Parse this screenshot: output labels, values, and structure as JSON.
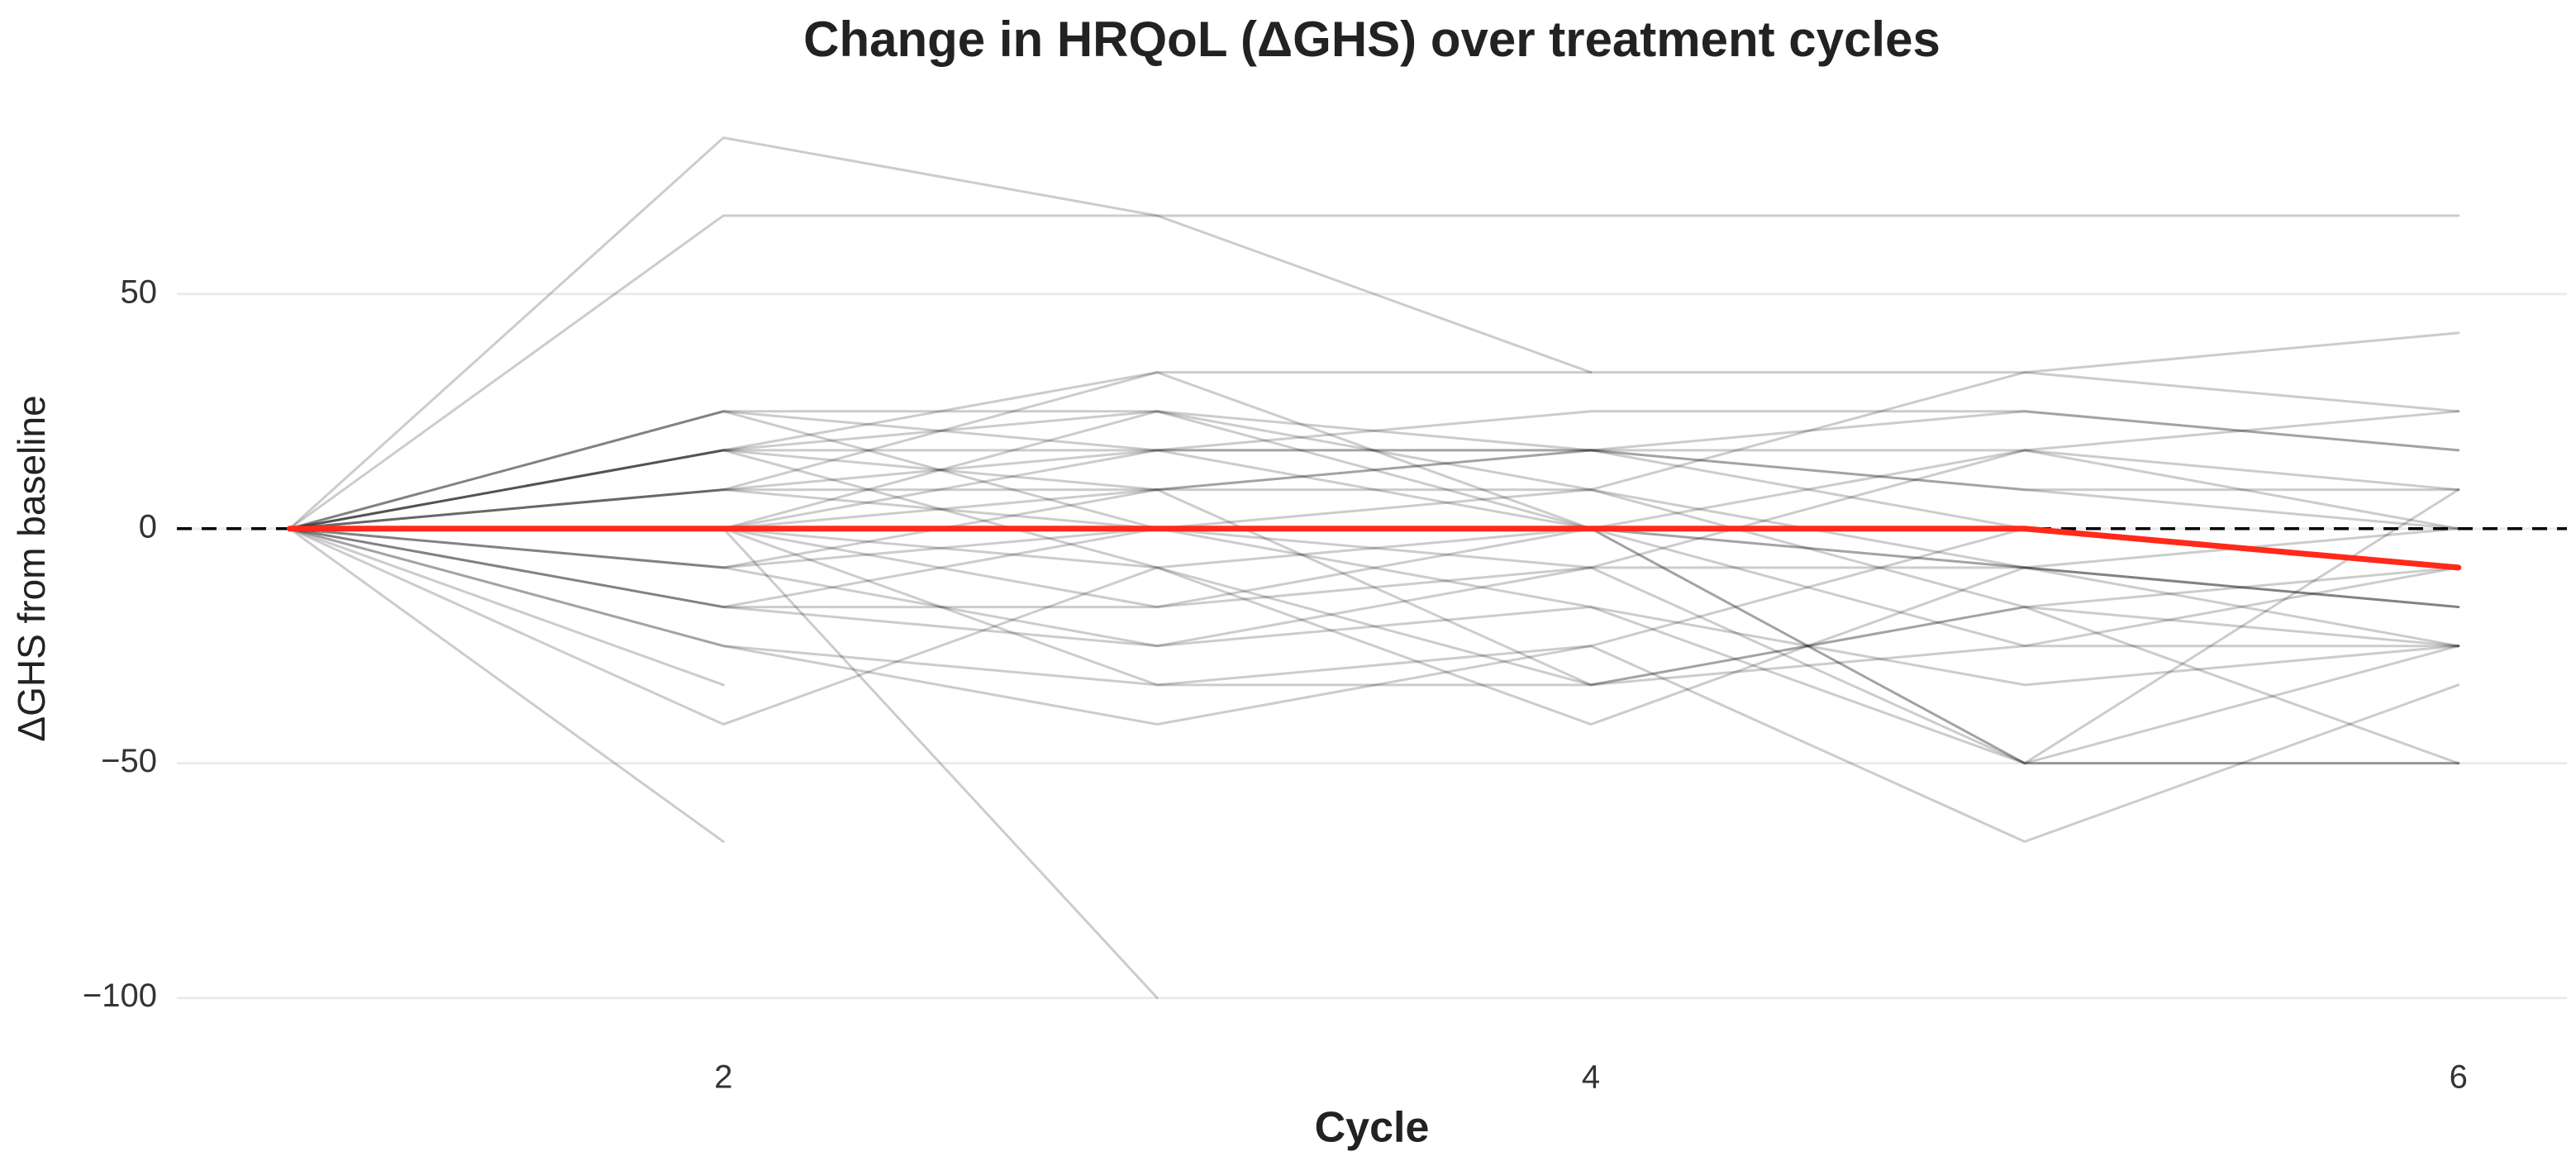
{
  "chart_data": {
    "type": "line",
    "title": "Change in HRQoL (ΔGHS) over treatment cycles",
    "x_label": "Cycle",
    "y_label": "ΔGHS from baseline",
    "x": [
      1,
      2,
      3,
      4,
      5,
      6
    ],
    "xlim": [
      0.74,
      6.25
    ],
    "xticks": [
      2,
      4,
      6
    ],
    "ylim": [
      -105,
      88
    ],
    "yticks": [
      {
        "value": -100,
        "label": "−100"
      },
      {
        "value": -50,
        "label": "−50"
      },
      0,
      50
    ],
    "grid": true,
    "reference_line": 0,
    "series": [
      {
        "color": "#000000",
        "alpha": 0.2,
        "width": 3,
        "values": [
          0,
          83.3,
          66.7,
          33.3,
          null,
          null
        ]
      },
      {
        "color": "#000000",
        "alpha": 0.2,
        "width": 3,
        "values": [
          0,
          66.7,
          66.7,
          66.7,
          66.7,
          66.7
        ]
      },
      {
        "color": "#000000",
        "alpha": 0.2,
        "width": 3,
        "values": [
          0,
          25,
          25,
          16.7,
          16.7,
          25
        ]
      },
      {
        "color": "#000000",
        "alpha": 0.2,
        "width": 3,
        "values": [
          0,
          16.7,
          33.3,
          33.3,
          33.3,
          41.7
        ]
      },
      {
        "color": "#000000",
        "alpha": 0.2,
        "width": 3,
        "values": [
          0,
          16.7,
          16.7,
          16.7,
          25,
          16.7
        ]
      },
      {
        "color": "#000000",
        "alpha": 0.2,
        "width": 3,
        "values": [
          0,
          8.3,
          8.3,
          16.7,
          8.3,
          0
        ]
      },
      {
        "color": "#000000",
        "alpha": 0.2,
        "width": 3,
        "values": [
          0,
          0,
          25,
          8.3,
          -8.3,
          -16.7
        ]
      },
      {
        "color": "#000000",
        "alpha": 0.2,
        "width": 3,
        "values": [
          0,
          -8.3,
          0,
          0,
          -8.3,
          -25
        ]
      },
      {
        "color": "#000000",
        "alpha": 0.2,
        "width": 3,
        "values": [
          0,
          -16.7,
          -16.7,
          0,
          16.7,
          8.3
        ]
      },
      {
        "color": "#000000",
        "alpha": 0.2,
        "width": 3,
        "values": [
          0,
          -25,
          -33.3,
          -33.3,
          -25,
          -8.3
        ]
      },
      {
        "color": "#000000",
        "alpha": 0.2,
        "width": 3,
        "values": [
          0,
          -41.7,
          -8.3,
          0,
          -50,
          -50
        ]
      },
      {
        "color": "#000000",
        "alpha": 0.2,
        "width": 3,
        "values": [
          0,
          -33.3,
          null,
          null,
          null,
          null
        ]
      },
      {
        "color": "#000000",
        "alpha": 0.2,
        "width": 3,
        "values": [
          0,
          -66.7,
          null,
          null,
          null,
          null
        ]
      },
      {
        "color": "#000000",
        "alpha": 0.2,
        "width": 3,
        "values": [
          0,
          0,
          -100,
          null,
          null,
          null
        ]
      },
      {
        "color": "#000000",
        "alpha": 0.2,
        "width": 3,
        "values": [
          0,
          16.7,
          -8.3,
          -33.3,
          -16.7,
          -25
        ]
      },
      {
        "color": "#000000",
        "alpha": 0.2,
        "width": 3,
        "values": [
          0,
          25,
          0,
          -8.3,
          -50,
          -50
        ]
      },
      {
        "color": "#000000",
        "alpha": 0.2,
        "width": 3,
        "values": [
          0,
          8.3,
          16.7,
          16.7,
          0,
          -8.3
        ]
      },
      {
        "color": "#000000",
        "alpha": 0.2,
        "width": 3,
        "values": [
          0,
          0,
          -8.3,
          -41.7,
          -8.3,
          0
        ]
      },
      {
        "color": "#000000",
        "alpha": 0.2,
        "width": 3,
        "values": [
          0,
          -8.3,
          -25,
          -16.7,
          -33.3,
          -25
        ]
      },
      {
        "color": "#000000",
        "alpha": 0.2,
        "width": 3,
        "values": [
          0,
          -16.7,
          0,
          8.3,
          33.3,
          25
        ]
      },
      {
        "color": "#000000",
        "alpha": 0.2,
        "width": 3,
        "values": [
          0,
          0,
          16.7,
          25,
          25,
          16.7
        ]
      },
      {
        "color": "#000000",
        "alpha": 0.2,
        "width": 3,
        "values": [
          0,
          -25,
          -41.7,
          -25,
          -66.7,
          -33.3
        ]
      },
      {
        "color": "#000000",
        "alpha": 0.2,
        "width": 3,
        "values": [
          0,
          8.3,
          0,
          -16.7,
          -50,
          8.3
        ]
      },
      {
        "color": "#000000",
        "alpha": 0.2,
        "width": 3,
        "values": [
          0,
          16.7,
          25,
          0,
          -8.3,
          -16.7
        ]
      },
      {
        "color": "#000000",
        "alpha": 0.2,
        "width": 3,
        "values": [
          0,
          0,
          -16.7,
          -8.3,
          16.7,
          0
        ]
      },
      {
        "color": "#000000",
        "alpha": 0.2,
        "width": 3,
        "values": [
          0,
          -8.3,
          8.3,
          16.7,
          8.3,
          8.3
        ]
      },
      {
        "color": "#000000",
        "alpha": 0.2,
        "width": 3,
        "values": [
          0,
          16.7,
          8.3,
          -33.3,
          -16.7,
          -50
        ]
      },
      {
        "color": "#000000",
        "alpha": 0.2,
        "width": 3,
        "values": [
          0,
          0,
          -33.3,
          -25,
          0,
          -8.3
        ]
      },
      {
        "color": "#000000",
        "alpha": 0.2,
        "width": 3,
        "values": [
          0,
          25,
          16.7,
          0,
          -25,
          -25
        ]
      },
      {
        "color": "#000000",
        "alpha": 0.2,
        "width": 3,
        "values": [
          0,
          -16.7,
          -25,
          -8.3,
          -8.3,
          -16.7
        ]
      },
      {
        "color": "#000000",
        "alpha": 0.2,
        "width": 3,
        "values": [
          0,
          0,
          8.3,
          8.3,
          -16.7,
          -8.3
        ]
      },
      {
        "color": "#000000",
        "alpha": 0.2,
        "width": 3,
        "values": [
          0,
          8.3,
          33.3,
          0,
          -50,
          -25
        ]
      },
      {
        "color": "#ff2a1a",
        "alpha": 1,
        "width": 7,
        "values": [
          0,
          0,
          0,
          0,
          0,
          -8.3
        ]
      }
    ]
  }
}
